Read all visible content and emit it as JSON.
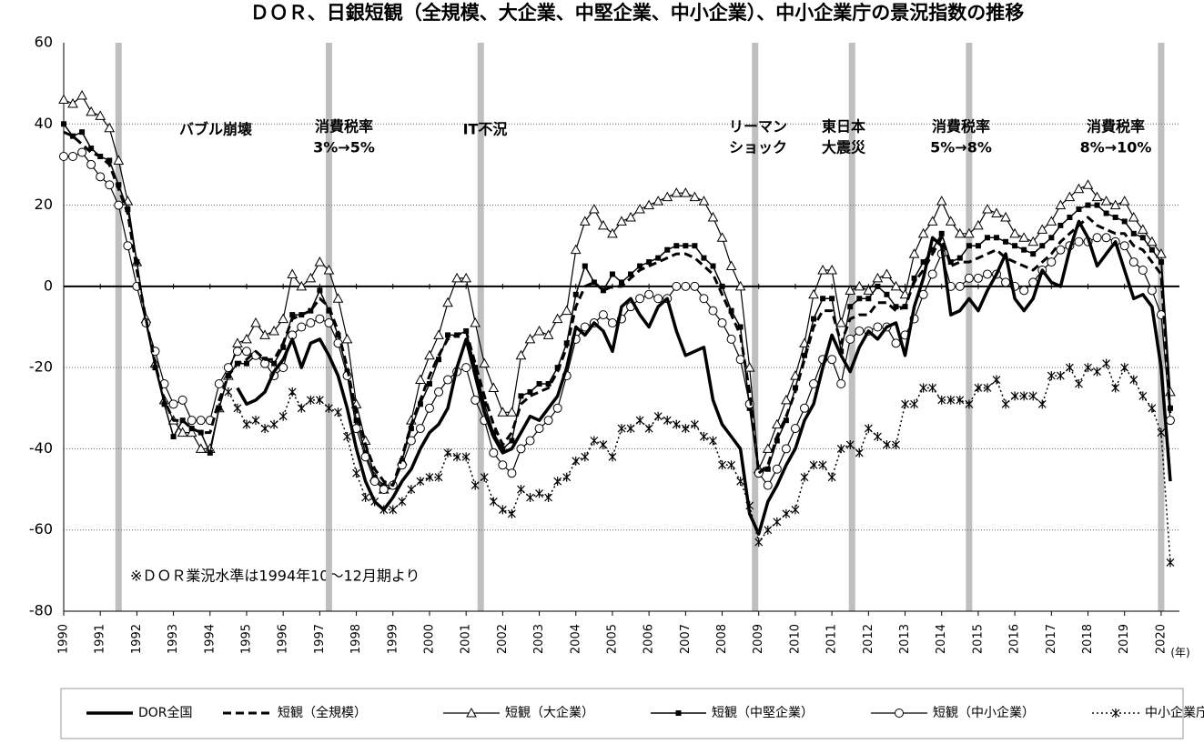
{
  "chart_data": {
    "type": "line",
    "title": "ＤＯＲ、日銀短観（全規模、大企業、中堅企業、中小企業）、中小企業庁の景況指数の推移",
    "annotation": "※ＤＯＲ業況水準は1994年10～12月期より",
    "x_label": "(年)",
    "xlim": [
      1990,
      2020.5
    ],
    "xticks": [
      1990,
      1991,
      1992,
      1993,
      1994,
      1995,
      1996,
      1997,
      1998,
      1999,
      2000,
      2001,
      2002,
      2003,
      2004,
      2005,
      2006,
      2007,
      2008,
      2009,
      2010,
      2011,
      2012,
      2013,
      2014,
      2015,
      2016,
      2017,
      2018,
      2019,
      2020
    ],
    "ylim": [
      -80,
      60
    ],
    "yticks": [
      -80,
      -60,
      -40,
      -20,
      0,
      20,
      40,
      60
    ],
    "grid": true,
    "events": [
      {
        "x": 1991.5,
        "lines": [
          "バブル崩壊"
        ]
      },
      {
        "x": 1997.25,
        "lines": [
          "消費税率",
          "3%→5%"
        ]
      },
      {
        "x": 2001.4,
        "lines": [
          "IT不況"
        ]
      },
      {
        "x": 2008.9,
        "lines": [
          "リーマン",
          "ショック"
        ]
      },
      {
        "x": 2011.55,
        "lines": [
          "東日本",
          "大震災"
        ]
      },
      {
        "x": 2014.75,
        "lines": [
          "消費税率",
          "5%→8%"
        ]
      },
      {
        "x": 2020,
        "lines": [
          "消費税率",
          "8%→10%"
        ]
      }
    ],
    "x": [
      1990,
      1990.25,
      1990.5,
      1990.75,
      1991,
      1991.25,
      1991.5,
      1991.75,
      1992,
      1992.25,
      1992.5,
      1992.75,
      1993,
      1993.25,
      1993.5,
      1993.75,
      1994,
      1994.25,
      1994.5,
      1994.75,
      1995,
      1995.25,
      1995.5,
      1995.75,
      1996,
      1996.25,
      1996.5,
      1996.75,
      1997,
      1997.25,
      1997.5,
      1997.75,
      1998,
      1998.25,
      1998.5,
      1998.75,
      1999,
      1999.25,
      1999.5,
      1999.75,
      2000,
      2000.25,
      2000.5,
      2000.75,
      2001,
      2001.25,
      2001.5,
      2001.75,
      2002,
      2002.25,
      2002.5,
      2002.75,
      2003,
      2003.25,
      2003.5,
      2003.75,
      2004,
      2004.25,
      2004.5,
      2004.75,
      2005,
      2005.25,
      2005.5,
      2005.75,
      2006,
      2006.25,
      2006.5,
      2006.75,
      2007,
      2007.25,
      2007.5,
      2007.75,
      2008,
      2008.25,
      2008.5,
      2008.75,
      2009,
      2009.25,
      2009.5,
      2009.75,
      2010,
      2010.25,
      2010.5,
      2010.75,
      2011,
      2011.25,
      2011.5,
      2011.75,
      2012,
      2012.25,
      2012.5,
      2012.75,
      2013,
      2013.25,
      2013.5,
      2013.75,
      2014,
      2014.25,
      2014.5,
      2014.75,
      2015,
      2015.25,
      2015.5,
      2015.75,
      2016,
      2016.25,
      2016.5,
      2016.75,
      2017,
      2017.25,
      2017.5,
      2017.75,
      2018,
      2018.25,
      2018.5,
      2018.75,
      2019,
      2019.25,
      2019.5,
      2019.75,
      2020,
      2020.25
    ],
    "series": [
      {
        "name": "DOR全国",
        "color": "#000000",
        "line_style": "solid",
        "width": 3.5,
        "marker": "none",
        "values": [
          null,
          null,
          null,
          null,
          null,
          null,
          null,
          null,
          null,
          null,
          null,
          null,
          null,
          null,
          null,
          null,
          null,
          null,
          null,
          -25,
          -29,
          -28,
          -26,
          -21,
          -18,
          -13,
          -20,
          -14,
          -13,
          -17,
          -22,
          -30,
          -40,
          -48,
          -53,
          -55,
          -52,
          -48,
          -45,
          -40,
          -36,
          -34,
          -30,
          -20,
          -13,
          -22,
          -31,
          -37,
          -41,
          -40,
          -36,
          -32,
          -33,
          -30,
          -27,
          -20,
          -10,
          -12,
          -9,
          -11,
          -16,
          -5,
          -3,
          -7,
          -10,
          -5,
          -3,
          -11,
          -17,
          -16,
          -15,
          -28,
          -34,
          -37,
          -40,
          -56,
          -61,
          -53,
          -49,
          -44,
          -40,
          -33,
          -29,
          -20,
          -12,
          -17,
          -21,
          -15,
          -11,
          -13,
          -10,
          -9,
          -17,
          -5,
          2,
          12,
          10,
          -7,
          -6,
          -3,
          -6,
          -1,
          3,
          8,
          -3,
          -6,
          -3,
          4,
          1,
          0,
          9,
          16,
          12,
          5,
          8,
          11,
          4,
          -3,
          -2,
          -5,
          -20,
          -48
        ]
      },
      {
        "name": "短観（全規模）",
        "color": "#000000",
        "line_style": "dashed",
        "width": 3,
        "marker": "none",
        "values": [
          38,
          37,
          35,
          33,
          32,
          30,
          24,
          18,
          4,
          -8,
          -19,
          -28,
          -33,
          -33,
          -35,
          -36,
          -36,
          -28,
          -22,
          -19,
          -18,
          -16,
          -18,
          -18,
          -14,
          -8,
          -7,
          -6,
          -3,
          -5,
          -11,
          -20,
          -31,
          -39,
          -45,
          -48,
          -49,
          -42,
          -34,
          -28,
          -22,
          -17,
          -13,
          -12,
          -11,
          -19,
          -27,
          -34,
          -39,
          -36,
          -29,
          -27,
          -26,
          -25,
          -21,
          -15,
          -5,
          0,
          1,
          -1,
          0,
          0,
          2,
          4,
          5,
          6,
          7,
          8,
          8,
          7,
          5,
          3,
          -2,
          -7,
          -12,
          -26,
          -46,
          -44,
          -37,
          -32,
          -26,
          -18,
          -10,
          -6,
          -6,
          -14,
          -8,
          -7,
          -7,
          -4,
          -4,
          -6,
          -5,
          1,
          4,
          8,
          12,
          5,
          6,
          6,
          7,
          8,
          9,
          7,
          6,
          5,
          4,
          6,
          8,
          11,
          13,
          15,
          17,
          15,
          14,
          13,
          13,
          10,
          9,
          6,
          3,
          -32
        ]
      },
      {
        "name": "短観（大企業）",
        "color": "#000000",
        "line_style": "solid",
        "width": 1.2,
        "marker": "triangle",
        "values": [
          46,
          45,
          47,
          43,
          42,
          39,
          31,
          21,
          6,
          -8,
          -19,
          -28,
          -33,
          -36,
          -36,
          -40,
          -40,
          -30,
          -22,
          -14,
          -13,
          -9,
          -12,
          -11,
          -8,
          3,
          0,
          2,
          6,
          4,
          -3,
          -13,
          -29,
          -38,
          -47,
          -50,
          -49,
          -43,
          -33,
          -23,
          -17,
          -12,
          -4,
          2,
          2,
          -9,
          -19,
          -25,
          -31,
          -31,
          -17,
          -13,
          -11,
          -12,
          -8,
          -6,
          9,
          16,
          19,
          15,
          13,
          16,
          17,
          19,
          20,
          21,
          22,
          23,
          23,
          22,
          21,
          17,
          12,
          5,
          0,
          -20,
          -45,
          -40,
          -34,
          -28,
          -22,
          -14,
          -2,
          4,
          4,
          -9,
          -1,
          0,
          -1,
          2,
          3,
          0,
          -2,
          8,
          13,
          16,
          21,
          16,
          13,
          13,
          15,
          19,
          18,
          17,
          13,
          12,
          11,
          14,
          16,
          20,
          22,
          24,
          25,
          22,
          21,
          20,
          21,
          17,
          14,
          11,
          8,
          -26
        ]
      },
      {
        "name": "短観（中堅企業）",
        "color": "#000000",
        "line_style": "solid",
        "width": 1.5,
        "marker": "square",
        "values": [
          40,
          37,
          38,
          34,
          32,
          31,
          25,
          19,
          6,
          -9,
          -20,
          -29,
          -37,
          -33,
          -35,
          -36,
          -41,
          -30,
          -22,
          -19,
          -19,
          -17,
          -18,
          -19,
          -15,
          -7,
          -7,
          -6,
          -1,
          -6,
          -12,
          -21,
          -33,
          -41,
          -47,
          -49,
          -49,
          -43,
          -35,
          -29,
          -24,
          -18,
          -12,
          -12,
          -11,
          -20,
          -29,
          -36,
          -40,
          -38,
          -27,
          -26,
          -24,
          -24,
          -20,
          -14,
          -2,
          5,
          1,
          -1,
          3,
          1,
          3,
          5,
          6,
          7,
          9,
          10,
          10,
          10,
          7,
          5,
          0,
          -6,
          -10,
          -30,
          -46,
          -45,
          -38,
          -33,
          -25,
          -17,
          -8,
          -3,
          -3,
          -16,
          -5,
          -3,
          -3,
          0,
          -2,
          -5,
          -5,
          2,
          6,
          9,
          13,
          6,
          7,
          10,
          10,
          12,
          12,
          11,
          10,
          9,
          8,
          10,
          12,
          15,
          17,
          19,
          20,
          20,
          18,
          17,
          16,
          13,
          12,
          9,
          6,
          -30
        ]
      },
      {
        "name": "短観（中小企業）",
        "color": "#000000",
        "line_style": "solid",
        "width": 1.2,
        "marker": "circle",
        "values": [
          32,
          32,
          33,
          30,
          27,
          25,
          20,
          10,
          0,
          -9,
          -16,
          -24,
          -29,
          -28,
          -33,
          -33,
          -33,
          -24,
          -20,
          -16,
          -16,
          -17,
          -19,
          -22,
          -20,
          -12,
          -10,
          -9,
          -8,
          -9,
          -14,
          -22,
          -35,
          -42,
          -48,
          -50,
          -49,
          -44,
          -38,
          -35,
          -30,
          -26,
          -23,
          -21,
          -20,
          -28,
          -33,
          -41,
          -44,
          -46,
          -40,
          -38,
          -35,
          -33,
          -30,
          -22,
          -13,
          -10,
          -9,
          -7,
          -9,
          -8,
          -5,
          -3,
          -2,
          -3,
          -3,
          0,
          0,
          0,
          -3,
          -6,
          -9,
          -13,
          -18,
          -29,
          -46,
          -49,
          -45,
          -40,
          -35,
          -30,
          -24,
          -18,
          -18,
          -24,
          -13,
          -11,
          -11,
          -10,
          -10,
          -14,
          -12,
          -8,
          -2,
          3,
          8,
          0,
          0,
          2,
          2,
          3,
          3,
          1,
          0,
          -1,
          1,
          4,
          6,
          9,
          10,
          11,
          11,
          12,
          12,
          11,
          10,
          6,
          4,
          -1,
          -7,
          -33
        ]
      },
      {
        "name": "中小企業庁",
        "color": "#000000",
        "line_style": "dotted",
        "width": 1.5,
        "marker": "cross",
        "values": [
          null,
          null,
          null,
          null,
          null,
          null,
          null,
          null,
          null,
          null,
          null,
          null,
          null,
          null,
          null,
          null,
          null,
          null,
          -26,
          -30,
          -34,
          -33,
          -35,
          -34,
          -32,
          -26,
          -30,
          -28,
          -28,
          -30,
          -31,
          -37,
          -46,
          -52,
          -53,
          -55,
          -55,
          -53,
          -50,
          -48,
          -47,
          -47,
          -41,
          -42,
          -42,
          -49,
          -47,
          -53,
          -55,
          -56,
          -50,
          -52,
          -51,
          -52,
          -48,
          -47,
          -43,
          -42,
          -38,
          -39,
          -42,
          -35,
          -35,
          -33,
          -35,
          -32,
          -33,
          -34,
          -35,
          -34,
          -37,
          -38,
          -44,
          -44,
          -48,
          -54,
          -63,
          -60,
          -58,
          -56,
          -55,
          -47,
          -44,
          -44,
          -47,
          -40,
          -39,
          -41,
          -35,
          -37,
          -39,
          -39,
          -29,
          -29,
          -25,
          -25,
          -28,
          -28,
          -28,
          -29,
          -25,
          -25,
          -23,
          -29,
          -27,
          -27,
          -27,
          -29,
          -22,
          -22,
          -20,
          -24,
          -20,
          -21,
          -19,
          -25,
          -20,
          -23,
          -27,
          -30,
          -36,
          -68
        ]
      }
    ]
  }
}
